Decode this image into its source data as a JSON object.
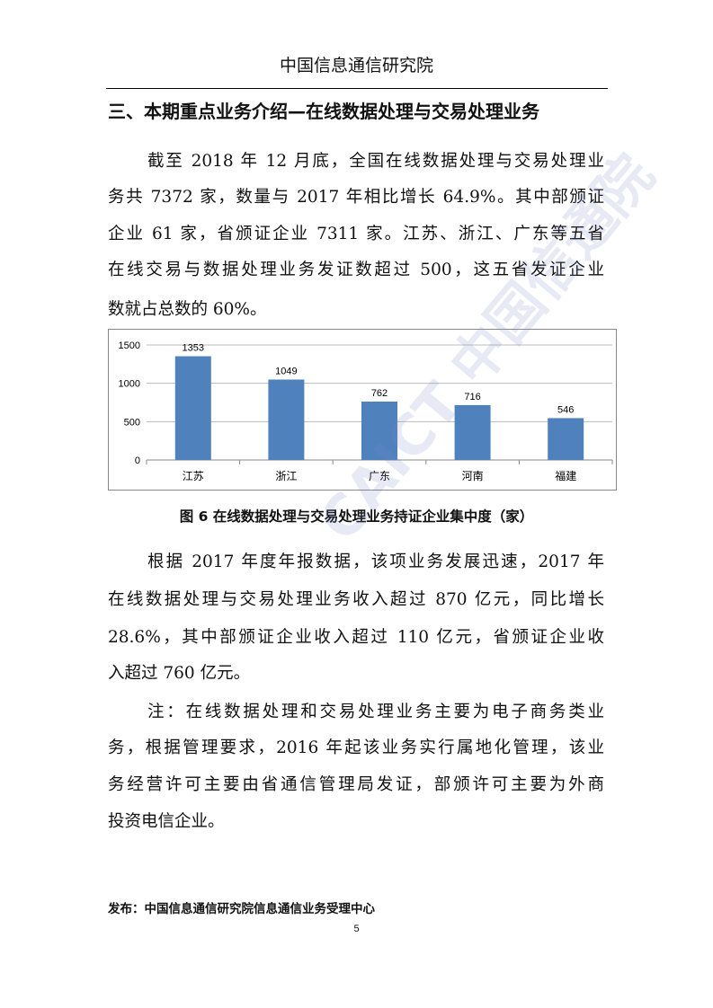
{
  "header": {
    "title": "中国信息通信研究院"
  },
  "section_heading": "三、本期重点业务介绍—在线数据处理与交易处理业务",
  "paragraph1": [
    "截至 2018 年 12 月底，全国在线数据处理与交易处理业",
    "务共 7372 家，数量与 2017 年相比增长 64.9%。其中部颁证",
    "企业 61 家，省颁证企业 7311 家。江苏、浙江、广东等五省",
    "在线交易与数据处理业务发证数超过 500，这五省发证企业",
    "数就占总数的 60%。"
  ],
  "chart_data": {
    "type": "bar",
    "categories": [
      "江苏",
      "浙江",
      "广东",
      "河南",
      "福建"
    ],
    "values": [
      1353,
      1049,
      762,
      716,
      546
    ],
    "data_labels": [
      "1353",
      "1049",
      "762",
      "716",
      "546"
    ],
    "yticks": [
      "0",
      "500",
      "1000",
      "1500"
    ],
    "ylim": [
      0,
      1500
    ],
    "grid": true,
    "bar_color": "#4f81bd",
    "title": "",
    "xlabel": "",
    "ylabel": ""
  },
  "figure_caption": "图 6  在线数据处理与交易处理业务持证企业集中度（家）",
  "paragraph2": [
    "根据 2017 年度年报数据，该项业务发展迅速，2017 年",
    "在线数据处理与交易处理业务收入超过 870 亿元，同比增长",
    "28.6%，其中部颁证企业收入超过 110 亿元，省颁证企业收",
    "入超过 760 亿元。"
  ],
  "note": [
    "注：在线数据处理和交易处理业务主要为电子商务类业",
    "务，根据管理要求，2016 年起该业务实行属地化管理，该业",
    "务经营许可主要由省通信管理局发证，部颁许可主要为外商",
    "投资电信企业。"
  ],
  "watermark": "CAICT 中国信通院",
  "footer": "发布：中国信息通信研究院信息通信业务受理中心",
  "page_number": "5"
}
